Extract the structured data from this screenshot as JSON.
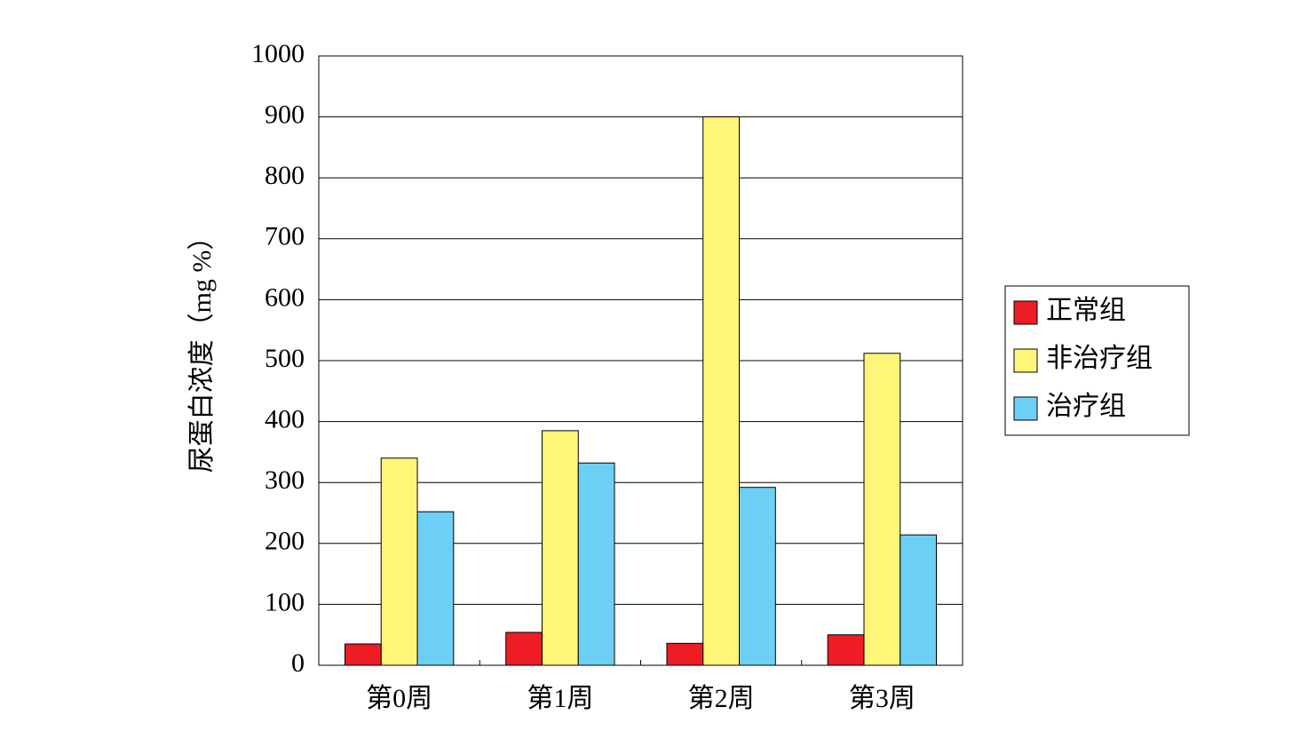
{
  "chart_data": {
    "type": "bar",
    "y_label": "尿蛋白浓度（mg %）",
    "categories": [
      "第0周",
      "第1周",
      "第2周",
      "第3周"
    ],
    "series": [
      {
        "name": "正常组",
        "color": "#ee1c25",
        "values": [
          35,
          54,
          36,
          50
        ]
      },
      {
        "name": "非治疗组",
        "color": "#fff578",
        "values": [
          340,
          385,
          900,
          512
        ]
      },
      {
        "name": "治疗组",
        "color": "#6dcff6",
        "values": [
          252,
          332,
          292,
          214
        ]
      }
    ],
    "ylim": [
      0,
      1000
    ],
    "yticks": [
      0,
      100,
      200,
      300,
      400,
      500,
      600,
      700,
      800,
      900,
      1000
    ],
    "grid": true,
    "legend": "right"
  }
}
